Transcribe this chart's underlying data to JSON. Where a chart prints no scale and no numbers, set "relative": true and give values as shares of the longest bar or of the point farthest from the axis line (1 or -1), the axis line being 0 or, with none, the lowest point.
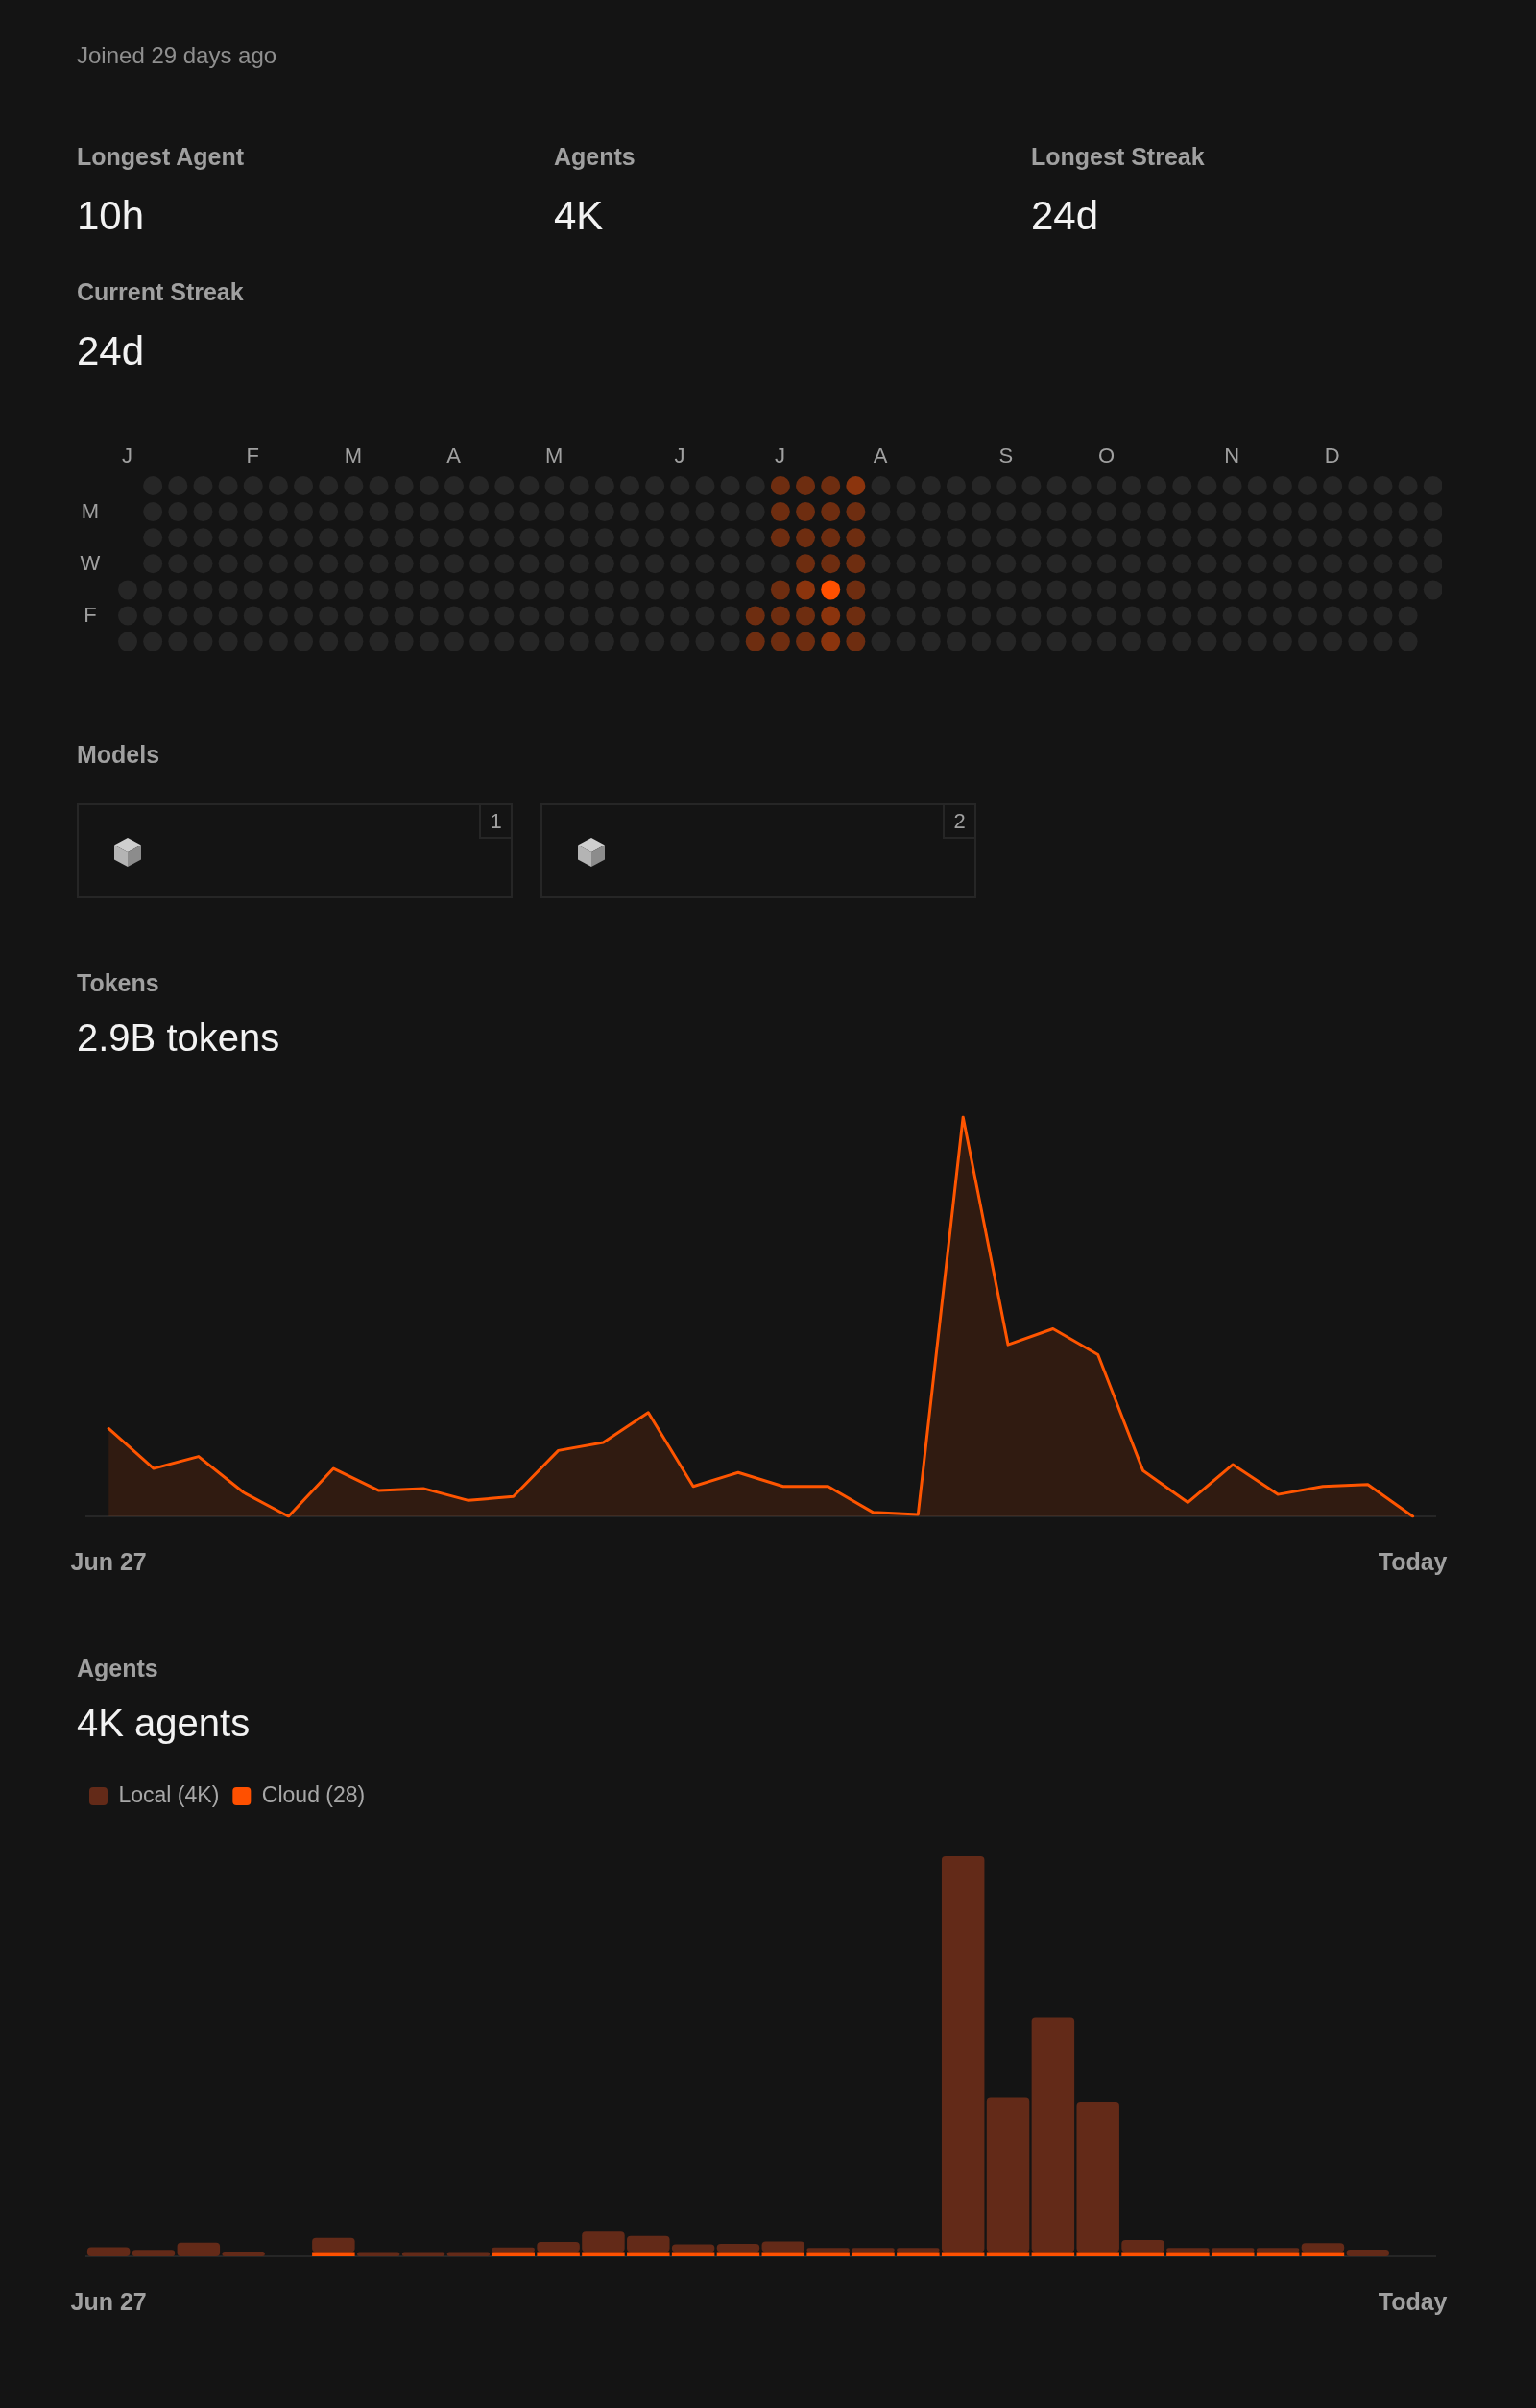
{
  "chart_data": [
    {
      "type": "other",
      "title": "Joined 29 days ago",
      "annotations": [
        "Longest Agent",
        "10h",
        "Agents",
        "4K",
        "Longest Streak",
        "24d",
        "Current Streak",
        "24d"
      ]
    },
    {
      "type": "other",
      "annotations": [
        "J",
        "F",
        "M",
        "A",
        "M",
        "J",
        "J",
        "A",
        "S",
        "O",
        "N",
        "D",
        "M",
        "W",
        "F"
      ]
    },
    {
      "type": "other",
      "title": "Models",
      "annotations": [
        "1",
        "2"
      ]
    },
    {
      "type": "area",
      "title": "Tokens",
      "subtitle": "2.9B tokens",
      "relative": true,
      "color": "#ff5500",
      "categories": [
        "Jun 27",
        null,
        null,
        null,
        null,
        null,
        null,
        null,
        null,
        null,
        null,
        null,
        null,
        null,
        null,
        null,
        null,
        null,
        null,
        null,
        null,
        null,
        null,
        null,
        null,
        null,
        null,
        null,
        null,
        "Today"
      ],
      "values": [
        0.22,
        0.12,
        0.15,
        0.06,
        0,
        0.12,
        0.065,
        0.07,
        0.04,
        0.05,
        0.165,
        0.185,
        0.26,
        0.075,
        0.11,
        0.075,
        0.075,
        0.01,
        0.005,
        1,
        0.43,
        0.47,
        0.405,
        0.115,
        0.035,
        0.13,
        0.055,
        0.075,
        0.08,
        0
      ]
    },
    {
      "type": "bar",
      "title": "Agents",
      "subtitle": "4K agents",
      "relative": true,
      "stacked": true,
      "legend": "top left",
      "categories": [
        "Jun 27",
        null,
        null,
        null,
        null,
        null,
        null,
        null,
        null,
        null,
        null,
        null,
        null,
        null,
        null,
        null,
        null,
        null,
        null,
        null,
        null,
        null,
        null,
        null,
        null,
        null,
        null,
        null,
        null,
        "Today"
      ],
      "series": [
        {
          "name": "Cloud (28)",
          "color": "#ff5000",
          "values": [
            0,
            0,
            0,
            0,
            0,
            0.011,
            0,
            0,
            0,
            0.011,
            0.011,
            0.011,
            0.011,
            0.011,
            0.011,
            0.011,
            0.011,
            0.011,
            0.011,
            0.011,
            0.011,
            0.011,
            0.011,
            0.011,
            0.011,
            0.011,
            0.011,
            0.011,
            0,
            0
          ]
        },
        {
          "name": "Local (4K)",
          "color": "#632a18",
          "values": [
            0.023,
            0.016,
            0.034,
            0.012,
            0,
            0.035,
            0.011,
            0.011,
            0.011,
            0.011,
            0.025,
            0.051,
            0.04,
            0.019,
            0.02,
            0.026,
            0.01,
            0.01,
            0.01,
            0.989,
            0.386,
            0.585,
            0.375,
            0.03,
            0.01,
            0.01,
            0.01,
            0.022,
            0.017,
            0
          ]
        }
      ]
    }
  ]
}
